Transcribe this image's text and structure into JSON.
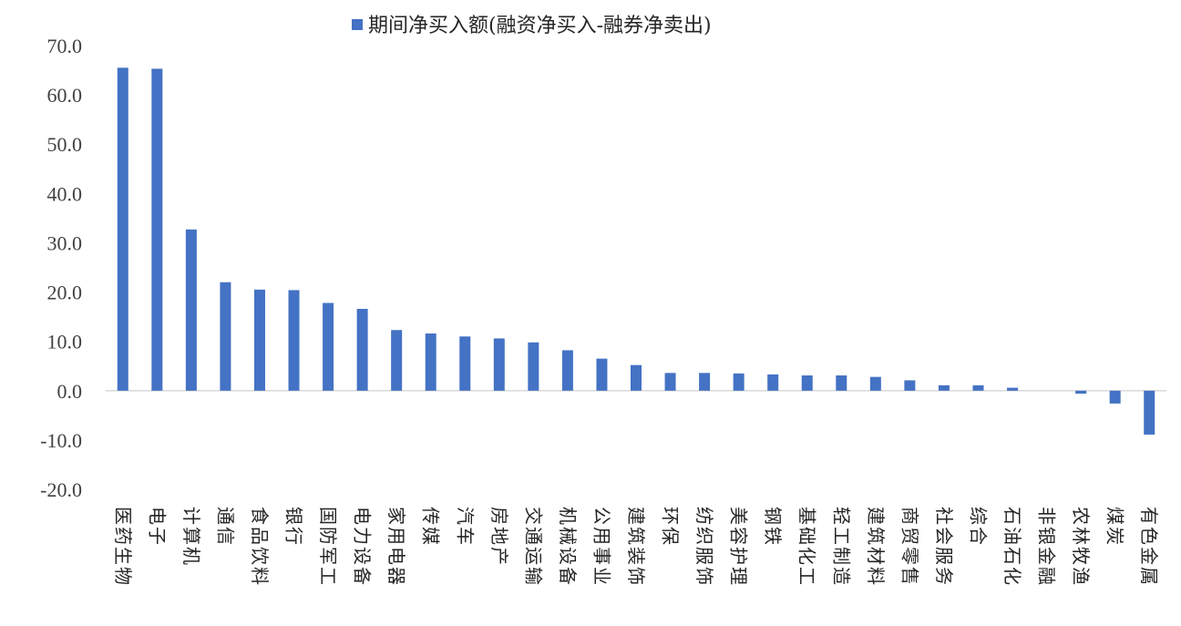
{
  "chart_data": {
    "type": "bar",
    "legend": {
      "label": "期间净买入额(融资净买入-融券净卖出)",
      "position": "top"
    },
    "categories": [
      "医药生物",
      "电子",
      "计算机",
      "通信",
      "食品饮料",
      "银行",
      "国防军工",
      "电力设备",
      "家用电器",
      "传媒",
      "汽车",
      "房地产",
      "交通运输",
      "机械设备",
      "公用事业",
      "建筑装饰",
      "环保",
      "纺织服饰",
      "美容护理",
      "钢铁",
      "基础化工",
      "轻工制造",
      "建筑材料",
      "商贸零售",
      "社会服务",
      "综合",
      "石油石化",
      "非银金融",
      "农林牧渔",
      "煤炭",
      "有色金属"
    ],
    "values": [
      65.5,
      65.3,
      32.7,
      22.0,
      20.5,
      20.4,
      17.8,
      16.6,
      12.3,
      11.6,
      11.0,
      10.6,
      9.8,
      8.2,
      6.5,
      5.2,
      3.6,
      3.6,
      3.5,
      3.3,
      3.1,
      3.1,
      2.8,
      2.1,
      1.1,
      1.1,
      0.6,
      0.0,
      -0.6,
      -2.6,
      -8.9
    ],
    "ylim": [
      -20,
      70
    ],
    "yticks": [
      -20,
      -10,
      0,
      10,
      20,
      30,
      40,
      50,
      60,
      70
    ],
    "ytick_labels": [
      "-20.0",
      "-10.0",
      "0.0",
      "10.0",
      "20.0",
      "30.0",
      "40.0",
      "50.0",
      "60.0",
      "70.0"
    ],
    "grid": false,
    "colors": {
      "bar": "#4472C4",
      "zero_line": "#D9D9D9"
    }
  }
}
